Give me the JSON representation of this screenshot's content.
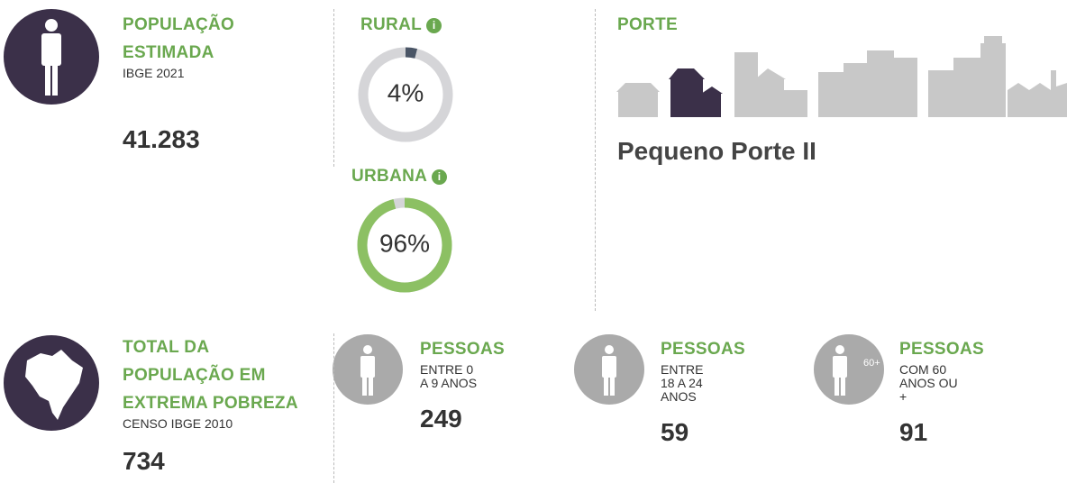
{
  "population": {
    "title_lines": [
      "POPULAÇÃO",
      "ESTIMADA"
    ],
    "source": "IBGE 2021",
    "value": "41.283"
  },
  "rural": {
    "label": "RURAL",
    "percent": 4,
    "percent_label": "4%"
  },
  "urbana": {
    "label": "URBANA",
    "percent": 96,
    "percent_label": "96%"
  },
  "porte": {
    "title": "PORTE",
    "value": "Pequeno Porte II"
  },
  "poverty": {
    "title_lines": [
      "TOTAL DA",
      "POPULAÇÃO EM",
      "EXTREMA POBREZA"
    ],
    "source": "CENSO IBGE 2010",
    "value": "734"
  },
  "groups": [
    {
      "title": "PESSOAS",
      "desc_lines": [
        "ENTRE 0",
        "A 9 ANOS"
      ],
      "value": "249"
    },
    {
      "title": "PESSOAS",
      "desc_lines": [
        "ENTRE",
        "18 A 24",
        "ANOS"
      ],
      "value": "59"
    },
    {
      "title": "PESSOAS",
      "desc_lines": [
        "COM 60",
        "ANOS OU",
        "+"
      ],
      "value": "91",
      "badge": "60+"
    }
  ]
}
